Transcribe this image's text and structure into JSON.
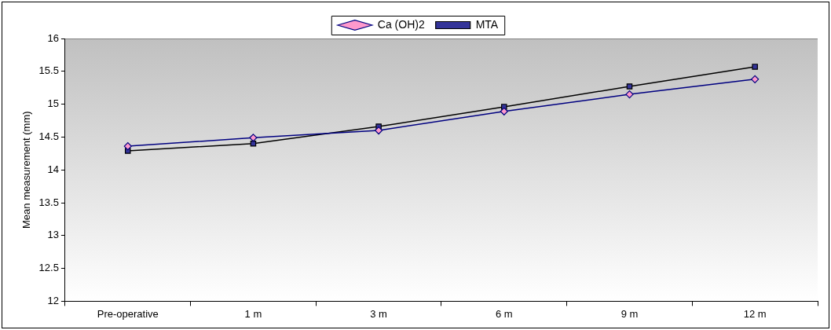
{
  "chart_data": {
    "type": "line",
    "ylabel": "Mean measurement (mm)",
    "categories": [
      "Pre-operative",
      "1 m",
      "3 m",
      "6 m",
      "9 m",
      "12 m"
    ],
    "series": [
      {
        "name": "Ca (OH)2",
        "color": "#000080",
        "marker": "diamond",
        "values": [
          14.36,
          14.49,
          14.6,
          14.89,
          15.15,
          15.38
        ]
      },
      {
        "name": "MTA",
        "color": "#000000",
        "marker": "square",
        "values": [
          14.29,
          14.4,
          14.66,
          14.96,
          15.27,
          15.57
        ]
      }
    ],
    "ylim": [
      12,
      16
    ],
    "yticks": [
      12,
      12.5,
      13,
      13.5,
      14,
      14.5,
      15,
      15.5,
      16
    ],
    "grid": false,
    "legend": "top",
    "line_style": "solid"
  }
}
